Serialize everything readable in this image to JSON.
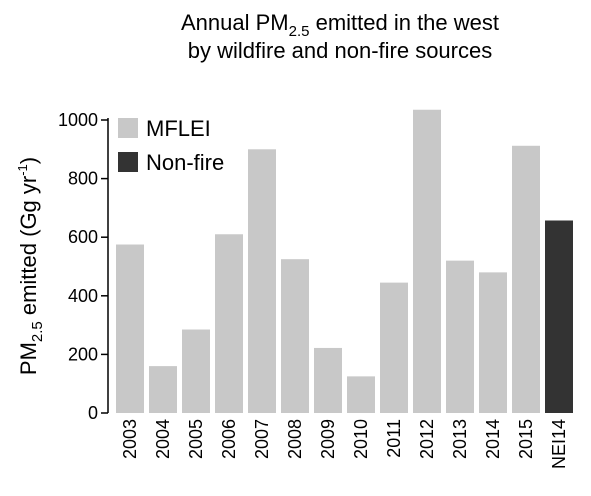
{
  "chart_data": {
    "type": "bar",
    "title": {
      "line1_pre": "Annual PM",
      "line1_sub": "2.5",
      "line1_post": " emitted in the west",
      "line2": "by wildfire and non-fire sources"
    },
    "ylabel": {
      "pre": "PM",
      "sub": "2.5",
      "mid": " emitted (Gg yr",
      "sup": "-1",
      "post": ")"
    },
    "xlabel": "",
    "ylim": [
      0,
      1000
    ],
    "yticks": [
      "0",
      "200",
      "400",
      "600",
      "800",
      "1000"
    ],
    "categories": [
      "2003",
      "2004",
      "2005",
      "2006",
      "2007",
      "2008",
      "2009",
      "2010",
      "2011",
      "2012",
      "2013",
      "2014",
      "2015",
      "NEI14"
    ],
    "values": [
      575,
      160,
      285,
      610,
      900,
      525,
      222,
      125,
      445,
      1035,
      520,
      480,
      912,
      657
    ],
    "series_index": [
      0,
      0,
      0,
      0,
      0,
      0,
      0,
      0,
      0,
      0,
      0,
      0,
      0,
      1
    ],
    "legend": {
      "position": "top-left",
      "entries": [
        {
          "name": "MFLEI",
          "color": "#c8c8c8"
        },
        {
          "name": "Non-fire",
          "color": "#333333"
        }
      ]
    },
    "grid": false
  }
}
